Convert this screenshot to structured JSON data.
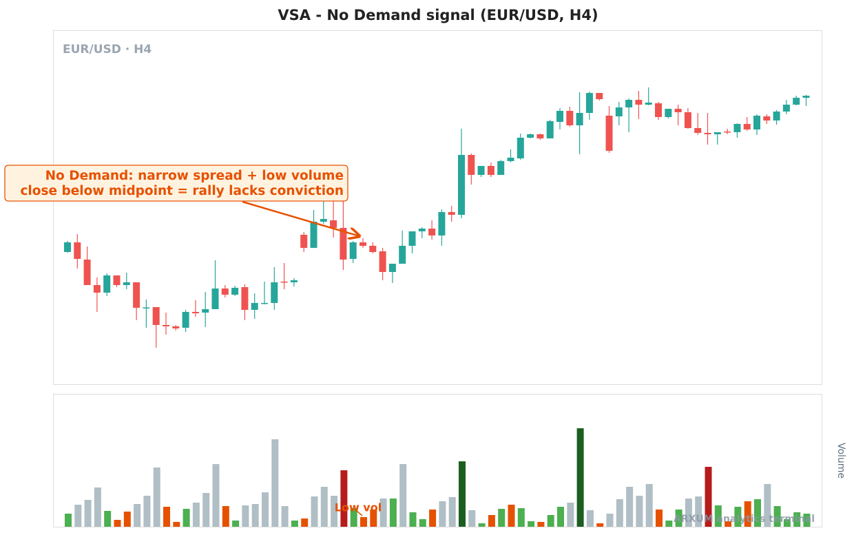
{
  "chart_data": [
    {
      "type": "candlestick",
      "title": "VSA - No Demand signal (EUR/USD, H4)",
      "panel_label": "EUR/USD · H4",
      "annotation": [
        "No Demand: narrow spread + low volume",
        "close below midpoint = rally lacks conviction"
      ],
      "ylim": [
        0,
        514
      ],
      "up_color": "#26a69a",
      "down_color": "#ef5350",
      "open": [
        192,
        206,
        181,
        144,
        133,
        158,
        144,
        148,
        110.5,
        112,
        86,
        84,
        82,
        105,
        104,
        109,
        139,
        130,
        141,
        108,
        117,
        118,
        149,
        148,
        217,
        198,
        236,
        238,
        227,
        182,
        206,
        201,
        193,
        163,
        175,
        201,
        222,
        226,
        216,
        250,
        246,
        333,
        304,
        317,
        304,
        324,
        328,
        358,
        363,
        357,
        381,
        397,
        376,
        394,
        423,
        390,
        389,
        402,
        413,
        406,
        408,
        388,
        400,
        395,
        372,
        365,
        363,
        367,
        366,
        378,
        370,
        389,
        383,
        396,
        406,
        416
      ],
      "close": [
        206,
        182,
        144,
        133,
        158,
        144,
        148,
        111,
        111.5,
        86,
        84,
        81,
        105,
        103,
        109,
        139,
        130,
        140,
        108,
        118,
        118,
        148,
        148,
        151,
        198,
        236,
        240,
        227,
        181,
        206,
        201,
        192,
        163,
        175,
        201,
        222,
        226,
        216,
        250,
        246,
        333,
        304,
        317,
        304,
        324,
        329,
        358,
        363,
        357,
        382,
        397,
        376,
        394,
        423,
        414,
        339,
        402,
        413,
        406,
        409,
        388,
        400,
        395,
        372,
        365,
        363,
        366,
        366,
        378,
        370,
        390,
        383,
        396,
        406,
        416,
        419
      ],
      "high": [
        208,
        218,
        200,
        155,
        161,
        158,
        162,
        148,
        123,
        112,
        104,
        86,
        108,
        122,
        134,
        180,
        144,
        143,
        145,
        132,
        149,
        170,
        176,
        154,
        221,
        253,
        268,
        283,
        268,
        208,
        212,
        206,
        198,
        175,
        223,
        222,
        228,
        238,
        254,
        259,
        371,
        335,
        317,
        322,
        326,
        341,
        364,
        364,
        364,
        384,
        401,
        403,
        424,
        425,
        423,
        404,
        410,
        415,
        426,
        431,
        410,
        400,
        406,
        401,
        394,
        394,
        366,
        371,
        379,
        388,
        392,
        392,
        398,
        413,
        419,
        420
      ],
      "low": [
        191,
        168,
        144,
        105,
        128,
        141,
        138,
        93,
        82,
        53,
        72,
        78,
        76,
        98,
        83,
        109,
        126,
        128,
        93,
        95,
        116,
        108,
        138,
        142,
        192,
        198,
        233,
        213,
        166,
        176,
        198,
        190,
        151,
        147,
        175,
        190,
        212,
        210,
        201,
        236,
        241,
        290,
        301,
        301,
        304,
        322,
        326,
        357,
        355,
        357,
        370,
        374,
        334,
        384,
        412,
        336,
        376,
        366,
        385,
        405,
        384,
        386,
        376,
        371,
        362,
        348,
        348,
        363,
        358,
        368,
        362,
        378,
        377,
        392,
        405,
        404
      ]
    },
    {
      "type": "bar",
      "ylabel": "Volume",
      "annotation": "Low vol",
      "ylim": [
        0,
        193
      ],
      "values": [
        19,
        32,
        39,
        57,
        23,
        10,
        22,
        33,
        45,
        86,
        29,
        7,
        26,
        35,
        49,
        91,
        30,
        9,
        31,
        33,
        50,
        127,
        30,
        9,
        12,
        44,
        58,
        45,
        82,
        27,
        14,
        25,
        41,
        41,
        91,
        21,
        11,
        25,
        37,
        43,
        95,
        24,
        5,
        17,
        26,
        32,
        27,
        8,
        7,
        17,
        29,
        35,
        143,
        24,
        5,
        19,
        40,
        58,
        45,
        62,
        25,
        9,
        25,
        41,
        44,
        87,
        31,
        8,
        29,
        37,
        40,
        62,
        30,
        11,
        21,
        19
      ],
      "colors": [
        "#4caf50",
        "#b0bec5",
        "#b0bec5",
        "#b0bec5",
        "#4caf50",
        "#e65100",
        "#e65100",
        "#b0bec5",
        "#b0bec5",
        "#b0bec5",
        "#e65100",
        "#e65100",
        "#4caf50",
        "#b0bec5",
        "#b0bec5",
        "#b0bec5",
        "#e65100",
        "#4caf50",
        "#b0bec5",
        "#b0bec5",
        "#b0bec5",
        "#b0bec5",
        "#b0bec5",
        "#4caf50",
        "#e65100",
        "#b0bec5",
        "#b0bec5",
        "#b0bec5",
        "#b71c1c",
        "#4caf50",
        "#e65100",
        "#e65100",
        "#b0bec5",
        "#4caf50",
        "#b0bec5",
        "#4caf50",
        "#4caf50",
        "#e65100",
        "#b0bec5",
        "#b0bec5",
        "#1b5e20",
        "#b0bec5",
        "#4caf50",
        "#e65100",
        "#4caf50",
        "#e65100",
        "#4caf50",
        "#4caf50",
        "#e65100",
        "#4caf50",
        "#4caf50",
        "#b0bec5",
        "#1b5e20",
        "#b0bec5",
        "#e65100",
        "#b0bec5",
        "#b0bec5",
        "#b0bec5",
        "#b0bec5",
        "#b0bec5",
        "#e65100",
        "#4caf50",
        "#4caf50",
        "#b0bec5",
        "#b0bec5",
        "#b71c1c",
        "#4caf50",
        "#e65100",
        "#4caf50",
        "#e65100",
        "#4caf50",
        "#b0bec5",
        "#4caf50",
        "#4caf50",
        "#4caf50",
        "#4caf50"
      ]
    }
  ],
  "watermark": "ARXUM analytics terminal"
}
